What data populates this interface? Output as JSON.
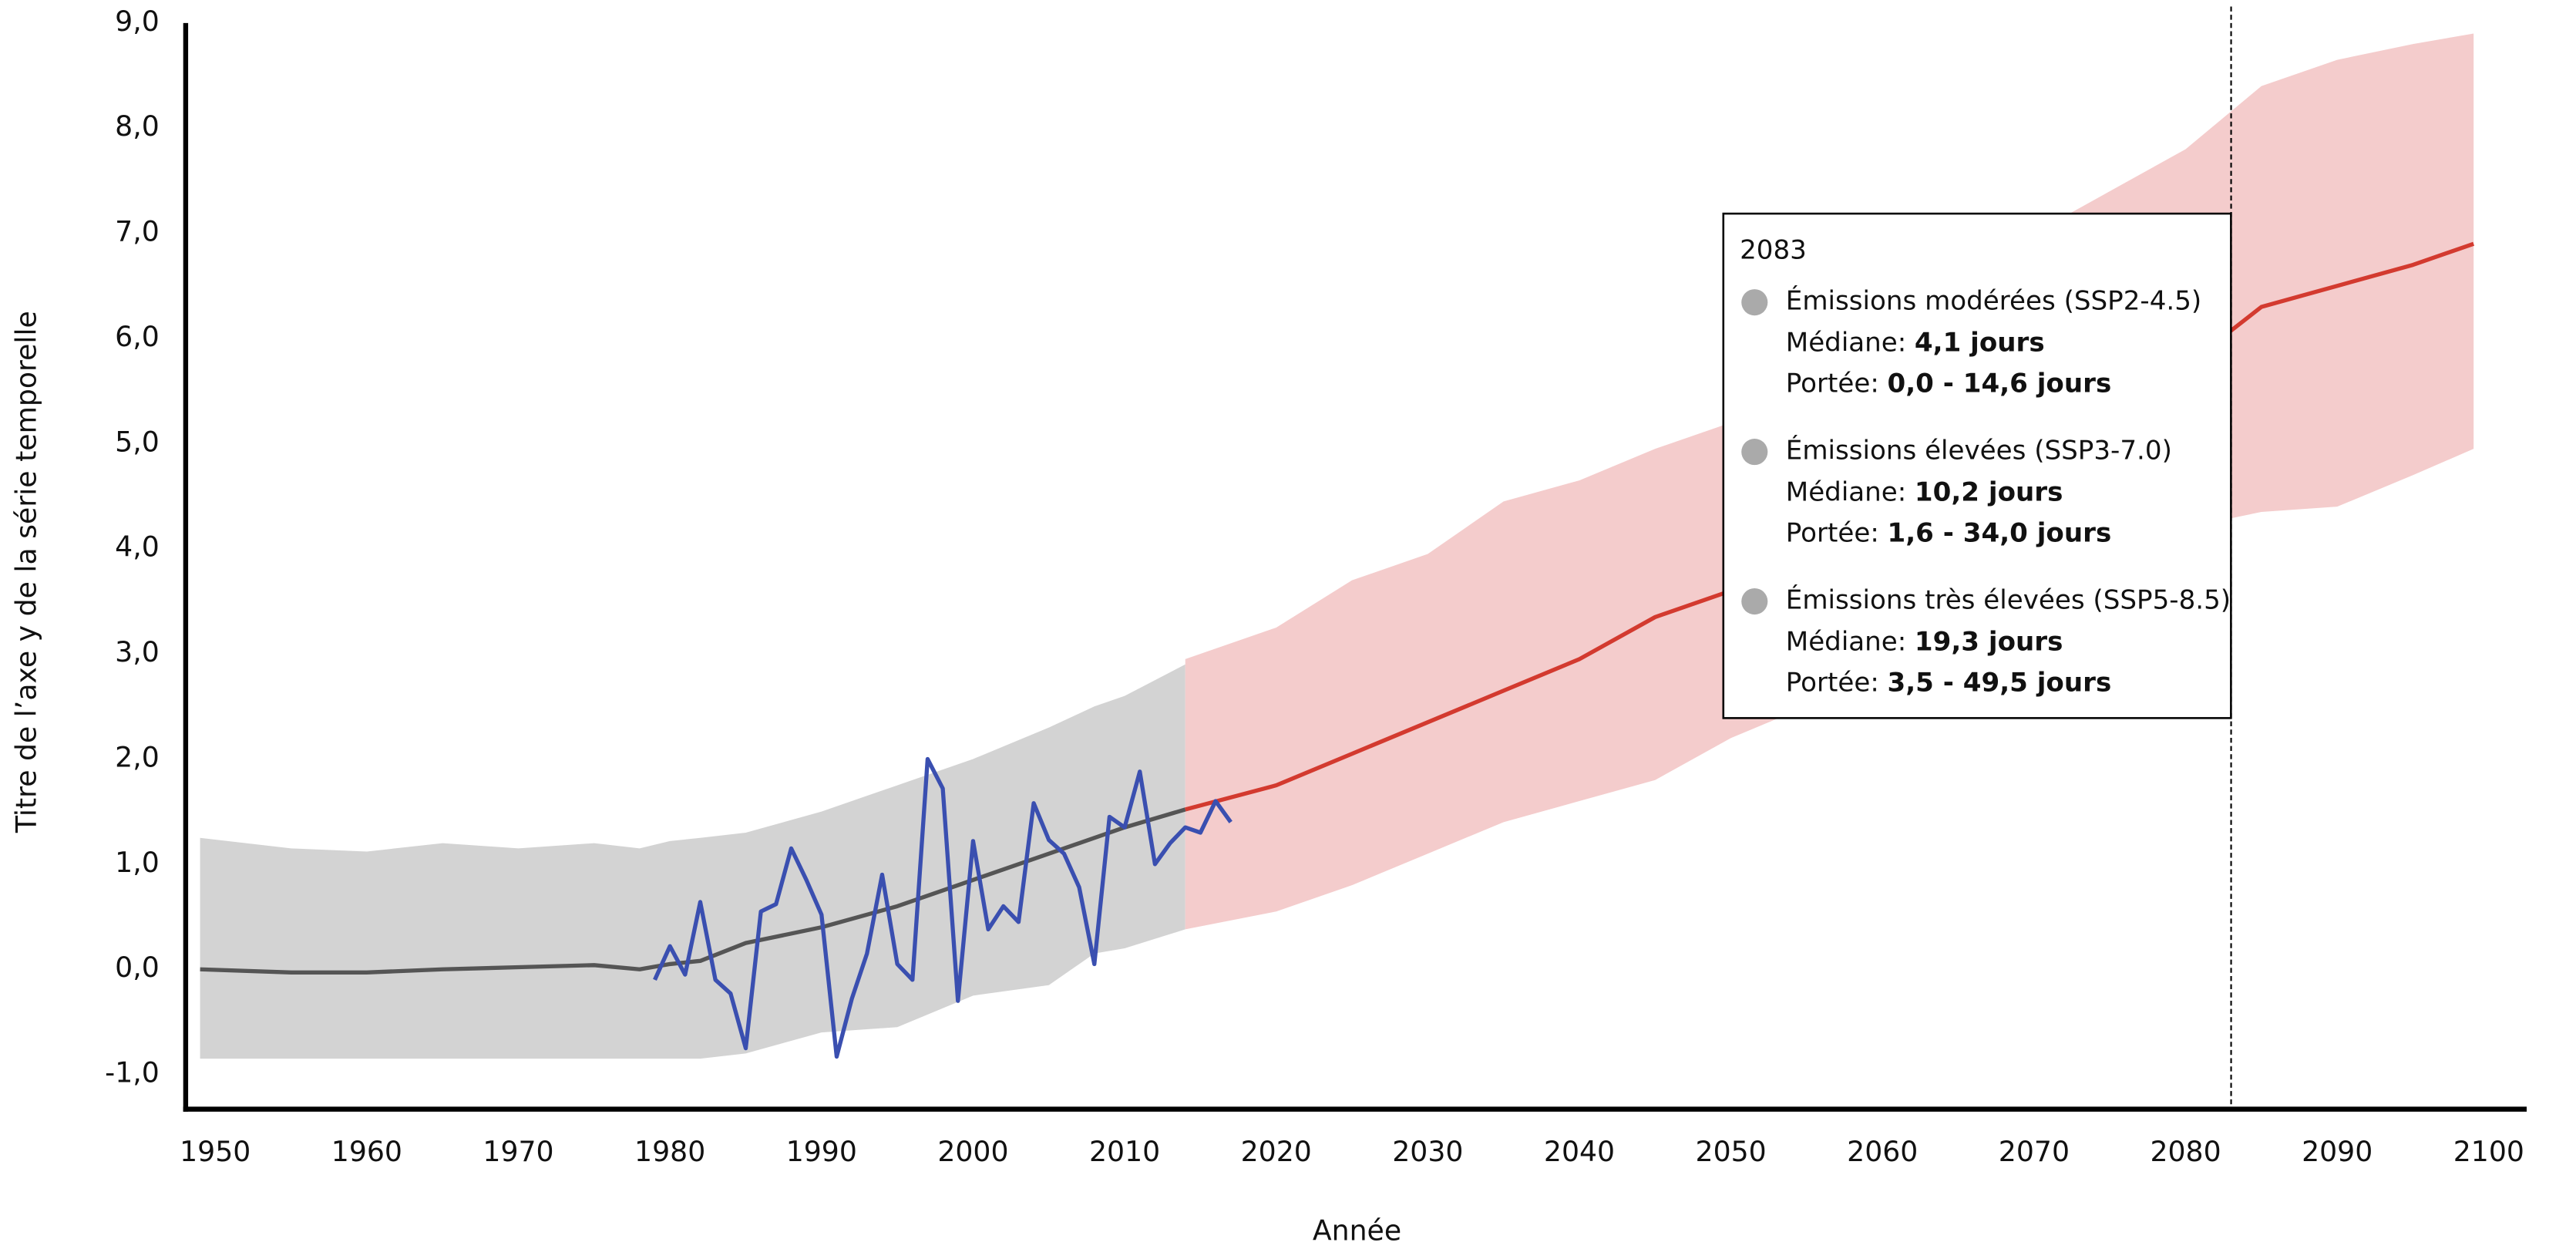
{
  "chart_data": {
    "type": "line",
    "x_label": "Année",
    "y_label": "Titre de l’axe y de la série temporelle",
    "xlim": [
      1948.05,
      2102.5
    ],
    "ylim": [
      -1.33,
      9.0
    ],
    "xticks": [
      1950,
      1960,
      1970,
      1980,
      1990,
      2000,
      2010,
      2020,
      2030,
      2040,
      2050,
      2060,
      2070,
      2080,
      2090,
      2100
    ],
    "yticks": [
      {
        "value": -1,
        "label": "-1,0"
      },
      {
        "value": 0,
        "label": "0,0"
      },
      {
        "value": 1,
        "label": "1,0"
      },
      {
        "value": 2,
        "label": "2,0"
      },
      {
        "value": 3,
        "label": "3,0"
      },
      {
        "value": 4,
        "label": "4,0"
      },
      {
        "value": 5,
        "label": "5,0"
      },
      {
        "value": 6,
        "label": "6,0"
      },
      {
        "value": 7,
        "label": "7,0"
      },
      {
        "value": 8,
        "label": "8,0"
      },
      {
        "value": 9,
        "label": "9,0"
      }
    ],
    "grid": false,
    "bands": [
      {
        "color": "#d3d3d3",
        "x": [
          1949,
          1955,
          1960,
          1965,
          1970,
          1975,
          1978,
          1980,
          1982,
          1985,
          1990,
          1995,
          2000,
          2005,
          2008,
          2010,
          2014
        ],
        "lower": [
          -0.85,
          -0.85,
          -0.85,
          -0.85,
          -0.85,
          -0.85,
          -0.85,
          -0.85,
          -0.85,
          -0.8,
          -0.6,
          -0.55,
          -0.25,
          -0.15,
          0.15,
          0.2,
          0.38
        ],
        "upper": [
          1.25,
          1.15,
          1.12,
          1.2,
          1.15,
          1.2,
          1.15,
          1.22,
          1.25,
          1.3,
          1.5,
          1.75,
          2.0,
          2.3,
          2.5,
          2.6,
          2.9
        ]
      },
      {
        "color": "#f4cccc",
        "x": [
          2014,
          2020,
          2025,
          2030,
          2035,
          2040,
          2045,
          2050,
          2055,
          2060,
          2065,
          2070,
          2075,
          2080,
          2085,
          2090,
          2095,
          2099
        ],
        "lower": [
          0.38,
          0.55,
          0.8,
          1.1,
          1.4,
          1.6,
          1.8,
          2.2,
          2.5,
          2.8,
          3.2,
          3.6,
          3.95,
          4.2,
          4.35,
          4.4,
          4.7,
          4.95
        ],
        "upper": [
          2.95,
          3.25,
          3.7,
          3.95,
          4.45,
          4.65,
          4.95,
          5.2,
          5.6,
          6.0,
          6.5,
          7.0,
          7.4,
          7.8,
          8.4,
          8.65,
          8.8,
          8.9
        ]
      }
    ],
    "series": [
      {
        "color": "#555555",
        "x": [
          1949,
          1955,
          1960,
          1965,
          1970,
          1975,
          1978,
          1980,
          1982,
          1985,
          1990,
          1995,
          2000,
          2005,
          2010,
          2014
        ],
        "values": [
          0.0,
          -0.03,
          -0.03,
          0.0,
          0.02,
          0.04,
          0.0,
          0.05,
          0.08,
          0.25,
          0.4,
          0.6,
          0.85,
          1.1,
          1.35,
          1.52
        ]
      },
      {
        "color": "#d33a2f",
        "x": [
          2014,
          2020,
          2025,
          2030,
          2035,
          2040,
          2045,
          2050,
          2055,
          2060,
          2065,
          2070,
          2075,
          2081,
          2085,
          2090,
          2095,
          2099
        ],
        "values": [
          1.52,
          1.75,
          2.05,
          2.35,
          2.65,
          2.95,
          3.35,
          3.6,
          4.0,
          4.4,
          4.8,
          5.15,
          5.5,
          5.85,
          6.3,
          6.5,
          6.7,
          6.9
        ]
      },
      {
        "color": "#3a4fb0",
        "x": [
          1979,
          1980,
          1981,
          1982,
          1983,
          1984,
          1985,
          1986,
          1987,
          1988,
          1989,
          1990,
          1991,
          1992,
          1993,
          1994,
          1995,
          1996,
          1997,
          1998,
          1999,
          2000,
          2001,
          2002,
          2003,
          2004,
          2005,
          2006,
          2007,
          2008,
          2009,
          2010,
          2011,
          2012,
          2013,
          2014,
          2015,
          2016,
          2017
        ],
        "values": [
          -0.1,
          0.22,
          -0.05,
          0.64,
          -0.1,
          -0.23,
          -0.75,
          0.55,
          0.62,
          1.15,
          0.85,
          0.52,
          -0.83,
          -0.28,
          0.15,
          0.9,
          0.05,
          -0.1,
          2.0,
          1.72,
          -0.3,
          1.22,
          0.38,
          0.6,
          0.45,
          1.58,
          1.23,
          1.1,
          0.78,
          0.05,
          1.45,
          1.35,
          1.88,
          1.0,
          1.2,
          1.35,
          1.3,
          1.6,
          1.4
        ]
      }
    ],
    "marker_x": 2083,
    "tooltip": {
      "entries": [
        {
          "name": "Émissions modérées (SSP2-4.5)",
          "median_label": "Médiane:",
          "median": "4,1 jours",
          "range_label": "Portée:",
          "range": "0,0 - 14,6 jours"
        },
        {
          "name": "Émissions élevées (SSP3-7.0)",
          "median_label": "Médiane:",
          "median": "10,2 jours",
          "range_label": "Portée:",
          "range": "1,6 - 34,0 jours"
        },
        {
          "name": "Émissions très élevées (SSP5-8.5)",
          "median_label": "Médiane:",
          "median": "19,3 jours",
          "range_label": "Portée:",
          "range": "3,5 - 49,5 jours"
        }
      ],
      "dot_color": "#aaaaaa"
    }
  }
}
